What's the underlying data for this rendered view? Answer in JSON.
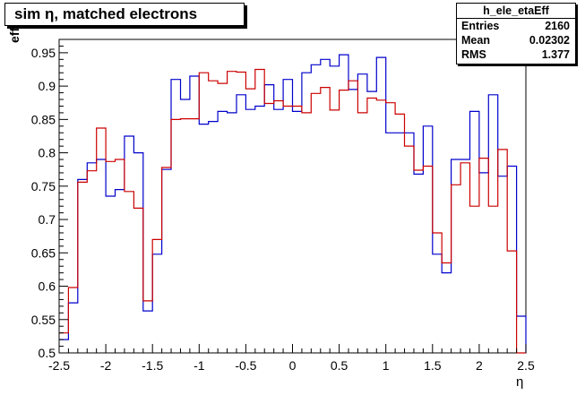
{
  "title": "sim η,  matched electrons",
  "stats": {
    "name": "h_ele_etaEff",
    "rows": [
      {
        "key": "Entries",
        "value": "2160"
      },
      {
        "key": "Mean",
        "value": "0.02302"
      },
      {
        "key": "RMS",
        "value": "1.377"
      }
    ]
  },
  "chart_data": {
    "type": "line",
    "xlabel": "η",
    "ylabel": "eff",
    "xlim": [
      -2.5,
      2.5
    ],
    "ylim": [
      0.5,
      0.97
    ],
    "xticks": [
      "-2.5",
      "-2",
      "-1.5",
      "-1",
      "-0.5",
      "0",
      "0.5",
      "1",
      "1.5",
      "2",
      "2.5"
    ],
    "yticks": [
      "0.5",
      "0.55",
      "0.6",
      "0.65",
      "0.7",
      "0.75",
      "0.8",
      "0.85",
      "0.9",
      "0.95"
    ],
    "grid": false,
    "bin_edges": [
      -2.5,
      -2.4,
      -2.3,
      -2.2,
      -2.1,
      -2.0,
      -1.9,
      -1.8,
      -1.7,
      -1.6,
      -1.5,
      -1.4,
      -1.3,
      -1.2,
      -1.1,
      -1.0,
      -0.9,
      -0.8,
      -0.7,
      -0.6,
      -0.5,
      -0.4,
      -0.3,
      -0.2,
      -0.1,
      0.0,
      0.1,
      0.2,
      0.3,
      0.4,
      0.5,
      0.6,
      0.7,
      0.8,
      0.9,
      1.0,
      1.1,
      1.2,
      1.3,
      1.4,
      1.5,
      1.6,
      1.7,
      1.8,
      1.9,
      2.0,
      2.1,
      2.2,
      2.3,
      2.4,
      2.5
    ],
    "series": [
      {
        "color": "#0000cc",
        "values": [
          0.52,
          0.575,
          0.76,
          0.785,
          0.79,
          0.735,
          0.745,
          0.825,
          0.8,
          0.563,
          0.648,
          0.775,
          0.91,
          0.88,
          0.915,
          0.843,
          0.847,
          0.862,
          0.86,
          0.887,
          0.865,
          0.87,
          0.902,
          0.865,
          0.91,
          0.862,
          0.92,
          0.932,
          0.94,
          0.93,
          0.947,
          0.895,
          0.918,
          0.892,
          0.943,
          0.83,
          0.83,
          0.83,
          0.768,
          0.84,
          0.648,
          0.62,
          0.79,
          0.79,
          0.862,
          0.77,
          0.887,
          0.765,
          0.78,
          0.555
        ]
      },
      {
        "color": "#cc0000",
        "values": [
          0.53,
          0.598,
          0.756,
          0.773,
          0.837,
          0.787,
          0.79,
          0.742,
          0.717,
          0.578,
          0.67,
          0.778,
          0.85,
          0.851,
          0.851,
          0.92,
          0.908,
          0.904,
          0.922,
          0.921,
          0.896,
          0.925,
          0.874,
          0.878,
          0.87,
          0.87,
          0.86,
          0.889,
          0.898,
          0.864,
          0.894,
          0.908,
          0.86,
          0.882,
          0.879,
          0.875,
          0.858,
          0.81,
          0.774,
          0.78,
          0.68,
          0.635,
          0.752,
          0.785,
          0.72,
          0.792,
          0.72,
          0.805,
          0.653,
          0.5
        ]
      }
    ]
  }
}
